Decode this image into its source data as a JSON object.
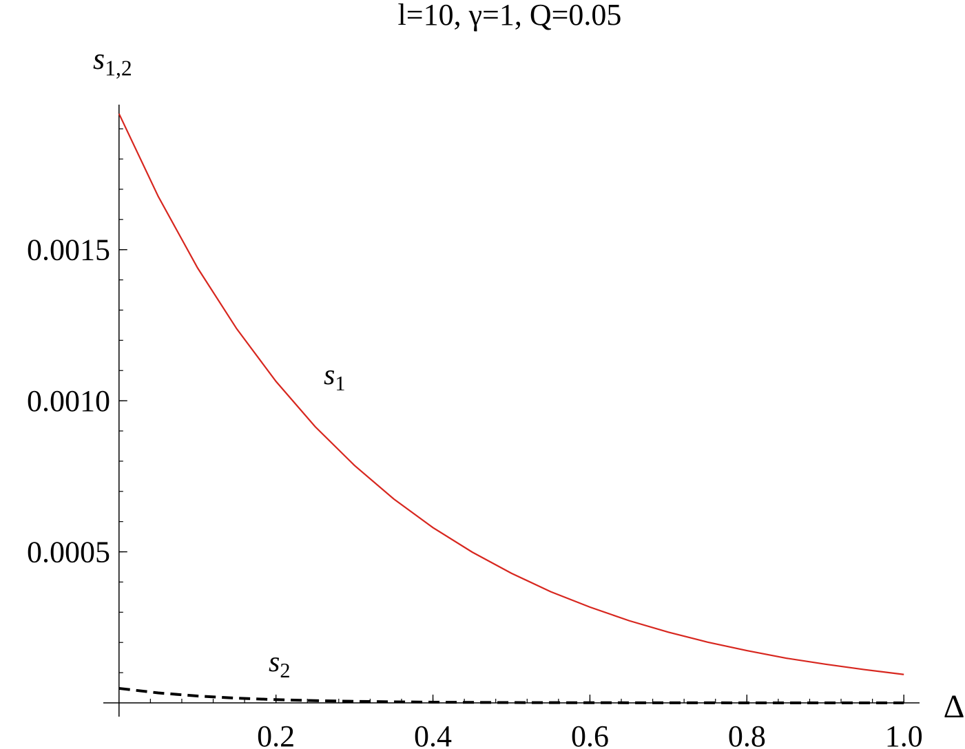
{
  "chart_data": {
    "type": "line",
    "title": "l=10, γ=1, Q=0.05",
    "x_label": "Δ",
    "y_label": "s1,2",
    "xlim": [
      -0.02,
      1.02
    ],
    "ylim": [
      0,
      0.00198
    ],
    "xticks": [
      0.2,
      0.4,
      0.6,
      0.8,
      {
        "value": 1,
        "label": "1.0"
      }
    ],
    "yticks": [
      0.0005,
      {
        "value": 0.001,
        "label": "0.0010"
      },
      0.0015
    ],
    "x": [
      0,
      0.05,
      0.1,
      0.15,
      0.2,
      0.25,
      0.3,
      0.35,
      0.4,
      0.45,
      0.5,
      0.55,
      0.6,
      0.65,
      0.7,
      0.75,
      0.8,
      0.85,
      0.9,
      0.95,
      1
    ],
    "series": [
      {
        "name": "s1",
        "color": "#d7261e",
        "dashed": false,
        "values": [
          0.00195,
          0.001676,
          0.00144,
          0.001238,
          0.001064,
          0.000914,
          0.000786,
          0.000675,
          0.00058,
          0.000499,
          0.000429,
          0.000368,
          0.000317,
          0.000272,
          0.000234,
          0.000201,
          0.000173,
          0.000148,
          0.000128,
          0.00011,
          9.4e-05
        ]
      },
      {
        "name": "s2",
        "color": "#000000",
        "dashed": true,
        "values": [
          4.8e-05,
          3.3e-05,
          2.27e-05,
          1.56e-05,
          1.07e-05,
          7.4e-06,
          5.1e-06,
          3.5e-06,
          2.4e-06,
          1.6e-06,
          1.1e-06,
          8e-07,
          5e-07,
          4e-07,
          3e-07,
          2e-07,
          1e-07,
          1e-07,
          1e-07,
          0,
          0
        ]
      }
    ]
  }
}
